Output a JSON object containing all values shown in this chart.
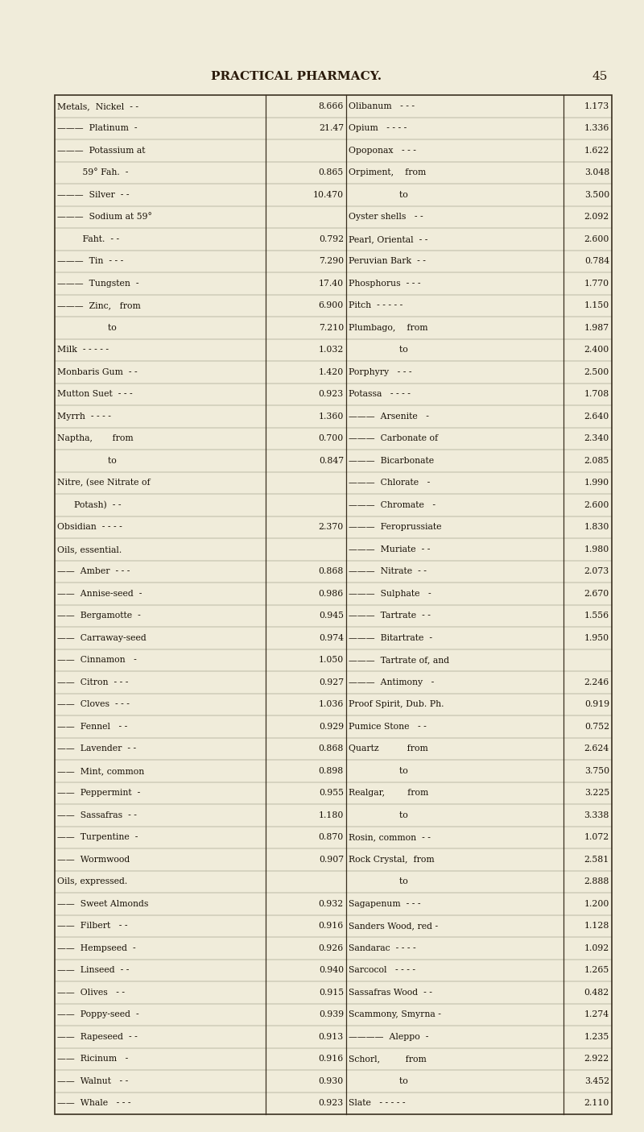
{
  "title": "PRACTICAL PHARMACY.",
  "page_number": "45",
  "bg_color": "#f0ecda",
  "left_col": [
    [
      "Metals,  Nickel  - -",
      "8.666"
    ],
    [
      "———  Platinum  -",
      "21.47"
    ],
    [
      "———  Potassium at",
      ""
    ],
    [
      "         59° Fah.  -",
      "0.865"
    ],
    [
      "———  Silver  - -",
      "10.470"
    ],
    [
      "———  Sodium at 59°",
      ""
    ],
    [
      "         Faht.  - -",
      "0.792"
    ],
    [
      "———  Tin  - - -",
      "7.290"
    ],
    [
      "———  Tungsten  -",
      "17.40"
    ],
    [
      "———  Zinc,   from",
      "6.900"
    ],
    [
      "                  to",
      "7.210"
    ],
    [
      "Milk  - - - - -",
      "1.032"
    ],
    [
      "Monbaris Gum  - -",
      "1.420"
    ],
    [
      "Mutton Suet  - - -",
      "0.923"
    ],
    [
      "Myrrh  - - - -",
      "1.360"
    ],
    [
      "Naptha,       from",
      "0.700"
    ],
    [
      "                  to",
      "0.847"
    ],
    [
      "Nitre, (see Nitrate of",
      ""
    ],
    [
      "      Potash)  - -",
      ""
    ],
    [
      "Obsidian  - - - -",
      "2.370"
    ],
    [
      "Oils, essential.",
      ""
    ],
    [
      "——  Amber  - - -",
      "0.868"
    ],
    [
      "——  Annise-seed  -",
      "0.986"
    ],
    [
      "——  Bergamotte  -",
      "0.945"
    ],
    [
      "——  Carraway-seed",
      "0.974"
    ],
    [
      "——  Cinnamon   -",
      "1.050"
    ],
    [
      "——  Citron  - - -",
      "0.927"
    ],
    [
      "——  Cloves  - - -",
      "1.036"
    ],
    [
      "——  Fennel   - -",
      "0.929"
    ],
    [
      "——  Lavender  - -",
      "0.868"
    ],
    [
      "——  Mint, common",
      "0.898"
    ],
    [
      "——  Peppermint  -",
      "0.955"
    ],
    [
      "——  Sassafras  - -",
      "1.180"
    ],
    [
      "——  Turpentine  -",
      "0.870"
    ],
    [
      "——  Wormwood",
      "0.907"
    ],
    [
      "Oils, expressed.",
      ""
    ],
    [
      "——  Sweet Almonds",
      "0.932"
    ],
    [
      "——  Filbert   - -",
      "0.916"
    ],
    [
      "——  Hempseed  -",
      "0.926"
    ],
    [
      "——  Linseed  - -",
      "0.940"
    ],
    [
      "——  Olives   - -",
      "0.915"
    ],
    [
      "——  Poppy-seed  -",
      "0.939"
    ],
    [
      "——  Rapeseed  - -",
      "0.913"
    ],
    [
      "——  Ricinum   -",
      "0.916"
    ],
    [
      "——  Walnut   - -",
      "0.930"
    ],
    [
      "——  Whale   - - -",
      "0.923"
    ]
  ],
  "right_col": [
    [
      "Olibanum   - - -",
      "1.173"
    ],
    [
      "Opium   - - - -",
      "1.336"
    ],
    [
      "Opoponax   - - -",
      "1.622"
    ],
    [
      "Orpiment,    from",
      "3.048"
    ],
    [
      "                  to",
      "3.500"
    ],
    [
      "Oyster shells   - -",
      "2.092"
    ],
    [
      "Pearl, Oriental  - -",
      "2.600"
    ],
    [
      "Peruvian Bark  - -",
      "0.784"
    ],
    [
      "Phosphorus  - - -",
      "1.770"
    ],
    [
      "Pitch  - - - - -",
      "1.150"
    ],
    [
      "Plumbago,    from",
      "1.987"
    ],
    [
      "                  to",
      "2.400"
    ],
    [
      "Porphyry   - - -",
      "2.500"
    ],
    [
      "Potassa   - - - -",
      "1.708"
    ],
    [
      "———  Arsenite   -",
      "2.640"
    ],
    [
      "———  Carbonate of",
      "2.340"
    ],
    [
      "———  Bicarbonate",
      "2.085"
    ],
    [
      "———  Chlorate   -",
      "1.990"
    ],
    [
      "———  Chromate   -",
      "2.600"
    ],
    [
      "———  Feroprussiate",
      "1.830"
    ],
    [
      "———  Muriate  - -",
      "1.980"
    ],
    [
      "———  Nitrate  - -",
      "2.073"
    ],
    [
      "———  Sulphate   -",
      "2.670"
    ],
    [
      "———  Tartrate  - -",
      "1.556"
    ],
    [
      "———  Bitartrate  -",
      "1.950"
    ],
    [
      "———  Tartrate of, and",
      ""
    ],
    [
      "———  Antimony   -",
      "2.246"
    ],
    [
      "Proof Spirit, Dub. Ph.",
      "0.919"
    ],
    [
      "Pumice Stone   - -",
      "0.752"
    ],
    [
      "Quartz          from",
      "2.624"
    ],
    [
      "                  to",
      "3.750"
    ],
    [
      "Realgar,        from",
      "3.225"
    ],
    [
      "                  to",
      "3.338"
    ],
    [
      "Rosin, common  - -",
      "1.072"
    ],
    [
      "Rock Crystal,  from",
      "2.581"
    ],
    [
      "                  to",
      "2.888"
    ],
    [
      "Sagapenum  - - -",
      "1.200"
    ],
    [
      "Sanders Wood, red -",
      "1.128"
    ],
    [
      "Sandarac  - - - -",
      "1.092"
    ],
    [
      "Sarcocol   - - - -",
      "1.265"
    ],
    [
      "Sassafras Wood  - -",
      "0.482"
    ],
    [
      "Scammony, Smyrna -",
      "1.274"
    ],
    [
      "————  Aleppo  -",
      "1.235"
    ],
    [
      "Schorl,         from",
      "2.922"
    ],
    [
      "                  to",
      "3.452"
    ],
    [
      "Slate   - - - - -",
      "2.110"
    ]
  ]
}
